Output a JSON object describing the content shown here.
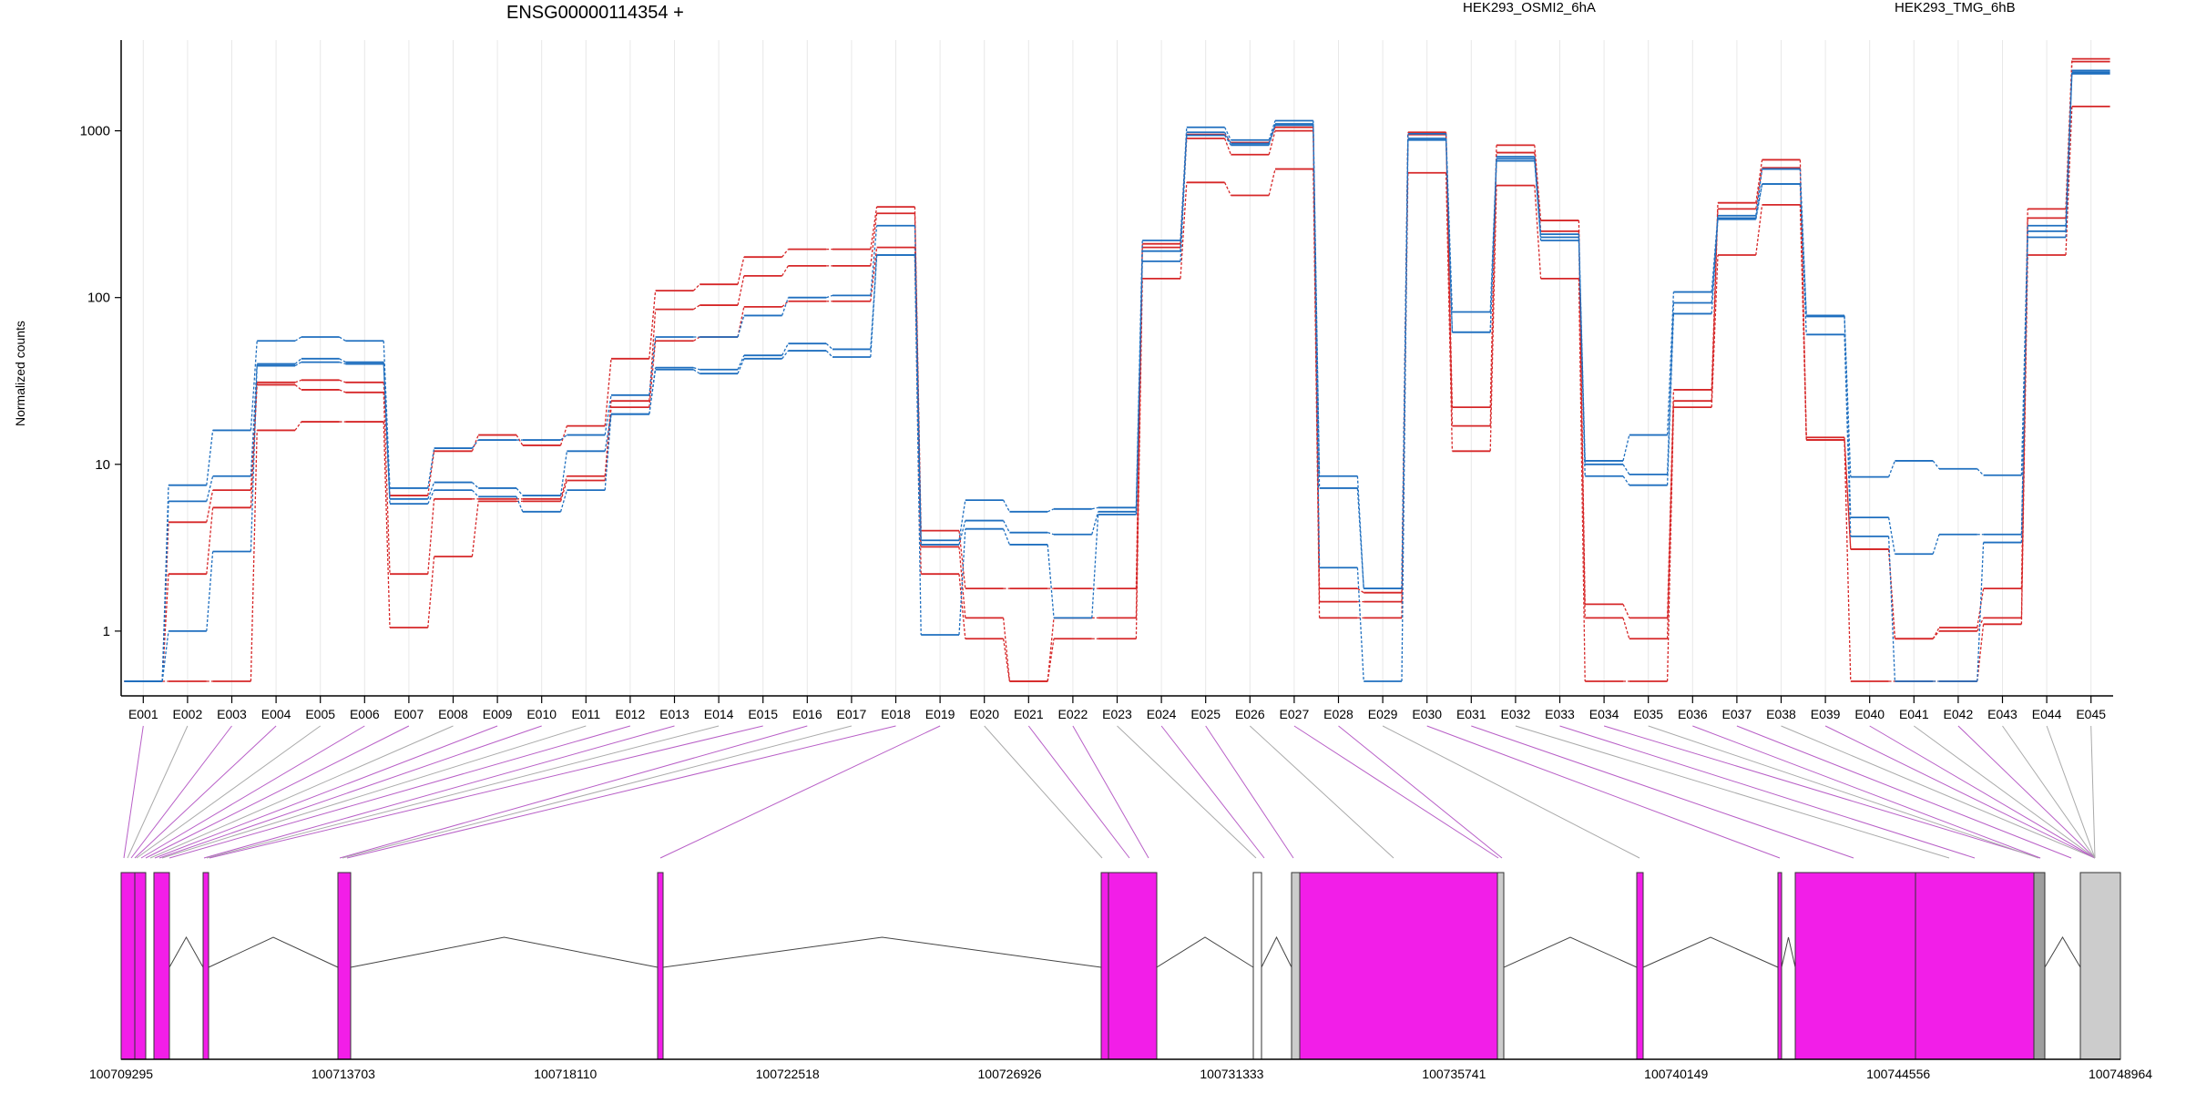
{
  "chart_data": {
    "type": "line",
    "title": "ENSG00000114354 +",
    "ylabel": "Normalized counts",
    "yscale": "log",
    "ylim": [
      0.5,
      3500
    ],
    "yticks": [
      1,
      10,
      100,
      1000
    ],
    "ytick_labels": [
      "1",
      "10",
      "100",
      "1000"
    ],
    "categories": [
      "E001",
      "E002",
      "E003",
      "E004",
      "E005",
      "E006",
      "E007",
      "E008",
      "E009",
      "E010",
      "E011",
      "E012",
      "E013",
      "E014",
      "E015",
      "E016",
      "E017",
      "E018",
      "E019",
      "E020",
      "E021",
      "E022",
      "E023",
      "E024",
      "E025",
      "E026",
      "E027",
      "E028",
      "E029",
      "E030",
      "E031",
      "E032",
      "E033",
      "E034",
      "E035",
      "E036",
      "E037",
      "E038",
      "E039",
      "E040",
      "E041",
      "E042",
      "E043",
      "E044",
      "E045"
    ],
    "legend": [
      {
        "label": "HEK293_OSMI2_6hA",
        "color": "#d62728"
      },
      {
        "label": "HEK293_TMG_6hB",
        "color": "#1f6fbf"
      }
    ],
    "series": [
      {
        "group": "HEK293_OSMI2_6hA",
        "color": "#d62728",
        "values": [
          0.5,
          4.5,
          7,
          31,
          32,
          31,
          6.5,
          12,
          15,
          13,
          17,
          43,
          110,
          120,
          175,
          195,
          195,
          350,
          4,
          1.8,
          1.8,
          1.8,
          1.8,
          210,
          950,
          850,
          1050,
          1.8,
          1.7,
          980,
          22,
          820,
          290,
          1.45,
          1.2,
          28,
          370,
          670,
          14.5,
          3.1,
          0.9,
          1.05,
          1.8,
          340,
          2700
        ]
      },
      {
        "group": "HEK293_OSMI2_6hA",
        "color": "#d62728",
        "values": [
          0.5,
          2.2,
          5.5,
          30,
          28,
          27,
          2.2,
          6.2,
          6.2,
          6.2,
          8.5,
          24,
          85,
          90,
          135,
          155,
          155,
          320,
          3.2,
          1.2,
          0.5,
          1.2,
          1.2,
          200,
          900,
          720,
          1000,
          1.5,
          1.5,
          950,
          17,
          740,
          250,
          1.2,
          0.9,
          24,
          340,
          600,
          14,
          3.1,
          0.9,
          1,
          1.2,
          300,
          2600
        ]
      },
      {
        "group": "HEK293_OSMI2_6hA",
        "color": "#d62728",
        "values": [
          0.5,
          0.5,
          0.5,
          16,
          18,
          18,
          1.05,
          2.8,
          6,
          6,
          8,
          22,
          55,
          58,
          88,
          95,
          95,
          200,
          2.2,
          0.9,
          0.5,
          0.9,
          0.9,
          130,
          490,
          410,
          590,
          1.2,
          1.2,
          560,
          12,
          470,
          130,
          0.5,
          0.5,
          22,
          180,
          360,
          14,
          0.5,
          0.5,
          0.5,
          1.1,
          180,
          1400
        ]
      },
      {
        "group": "HEK293_TMG_6hB",
        "color": "#1f6fbf",
        "values": [
          0.5,
          7.5,
          16,
          55,
          58,
          55,
          7.2,
          12.5,
          14,
          14,
          15,
          26,
          58,
          58,
          78,
          100,
          103,
          270,
          3.5,
          6.1,
          5.2,
          5.4,
          5.5,
          220,
          1050,
          880,
          1150,
          8.5,
          1.8,
          960,
          82,
          700,
          240,
          10.5,
          15,
          108,
          310,
          590,
          78,
          8.4,
          10.5,
          9.4,
          8.6,
          270,
          2300
        ]
      },
      {
        "group": "HEK293_TMG_6hB",
        "color": "#1f6fbf",
        "values": [
          0.5,
          6,
          8.5,
          40,
          43,
          41,
          6.2,
          7.8,
          7.2,
          6.5,
          12,
          20,
          38,
          37,
          45,
          53,
          49,
          180,
          3.3,
          4.6,
          3.9,
          3.8,
          5.2,
          190,
          980,
          840,
          1100,
          7.2,
          1.8,
          900,
          62,
          680,
          230,
          10,
          8.7,
          93,
          300,
          480,
          77,
          4.8,
          2.9,
          3.8,
          3.8,
          250,
          2250
        ]
      },
      {
        "group": "HEK293_TMG_6hB",
        "color": "#1f6fbf",
        "values": [
          0.5,
          1,
          3,
          39,
          41,
          40,
          5.8,
          7,
          6.4,
          5.2,
          7,
          20,
          37,
          35,
          43,
          48,
          44,
          180,
          0.95,
          4.1,
          3.3,
          1.2,
          5,
          165,
          940,
          820,
          1080,
          2.4,
          0.5,
          880,
          62,
          660,
          220,
          8.5,
          7.5,
          80,
          295,
          480,
          60,
          3.7,
          0.5,
          0.5,
          3.4,
          230,
          2200
        ]
      }
    ],
    "gene_model": {
      "coordinate_labels": [
        "100709295",
        "100713703",
        "100718110",
        "100722518",
        "100726926",
        "100731333",
        "100735741",
        "100740149",
        "100744556",
        "100748964"
      ]
    }
  }
}
